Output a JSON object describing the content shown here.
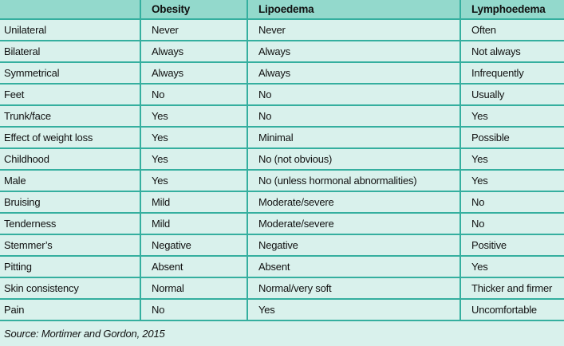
{
  "table": {
    "columns": [
      "",
      "Obesity",
      "Lipoedema",
      "Lymphoedema"
    ],
    "rows": [
      [
        "Unilateral",
        "Never",
        "Never",
        "Often"
      ],
      [
        "Bilateral",
        "Always",
        "Always",
        "Not always"
      ],
      [
        "Symmetrical",
        "Always",
        "Always",
        "Infrequently"
      ],
      [
        "Feet",
        "No",
        "No",
        "Usually"
      ],
      [
        "Trunk/face",
        "Yes",
        "No",
        "Yes"
      ],
      [
        "Effect of weight loss",
        "Yes",
        "Minimal",
        "Possible"
      ],
      [
        "Childhood",
        "Yes",
        "No (not obvious)",
        "Yes"
      ],
      [
        "Male",
        "Yes",
        "No (unless hormonal abnormalities)",
        "Yes"
      ],
      [
        "Bruising",
        "Mild",
        "Moderate/severe",
        "No"
      ],
      [
        "Tenderness",
        "Mild",
        "Moderate/severe",
        "No"
      ],
      [
        "Stemmer’s",
        "Negative",
        "Negative",
        "Positive"
      ],
      [
        "Pitting",
        "Absent",
        "Absent",
        "Yes"
      ],
      [
        "Skin consistency",
        "Normal",
        "Normal/very soft",
        "Thicker and firmer"
      ],
      [
        "Pain",
        "No",
        "Yes",
        "Uncomfortable"
      ]
    ],
    "source": "Source: Mortimer and Gordon, 2015"
  },
  "colors": {
    "header_bg": "#93d9cc",
    "row_bg": "#d9f1ec",
    "border": "#35af9f",
    "text": "#111111"
  }
}
